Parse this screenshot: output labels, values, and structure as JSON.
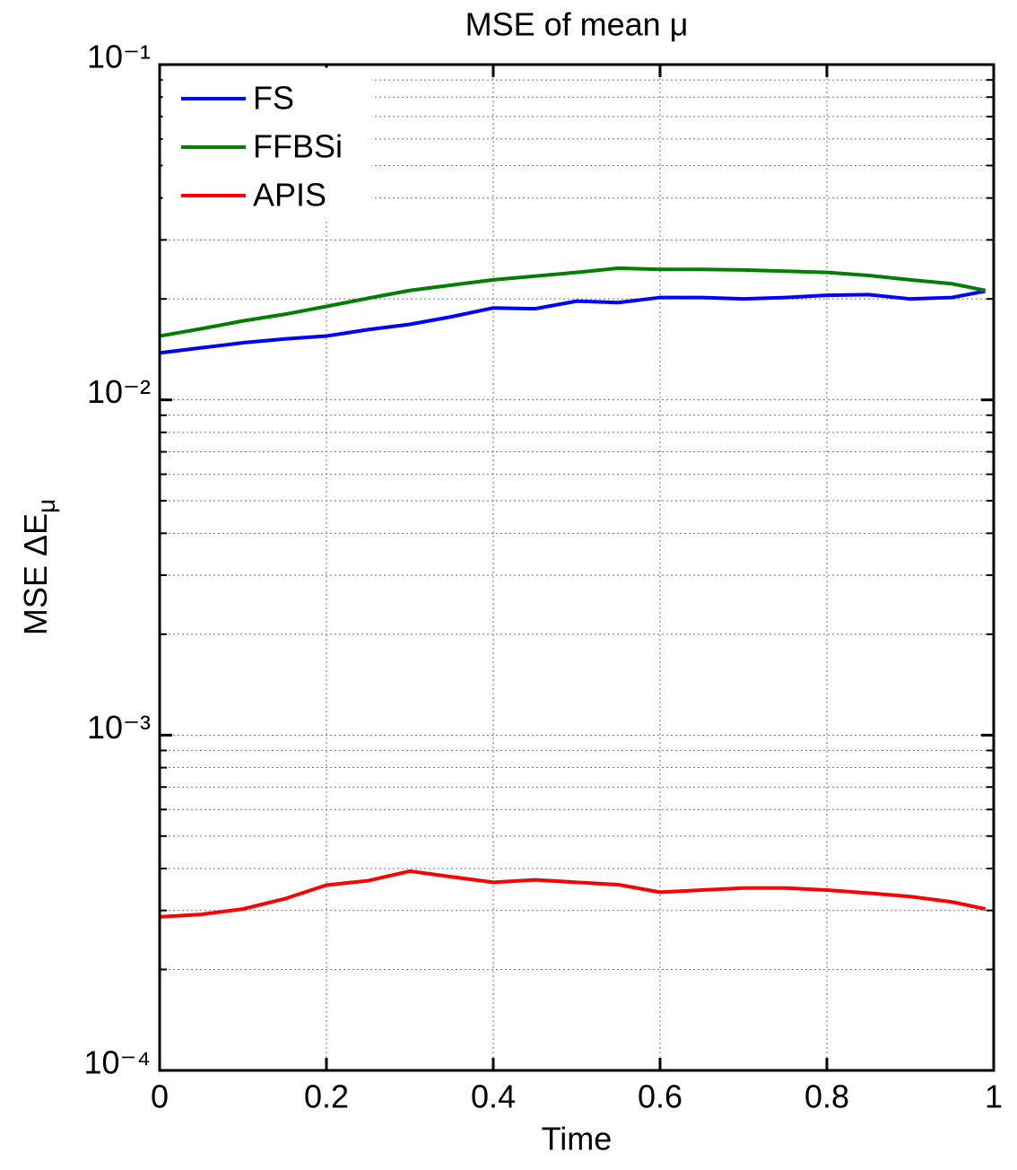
{
  "chart_data": {
    "type": "line",
    "title": "MSE of mean μ",
    "xlabel": "Time",
    "ylabel": {
      "text": "MSE ΔE",
      "subscript": "μ"
    },
    "x": [
      0,
      0.05,
      0.1,
      0.15,
      0.2,
      0.25,
      0.3,
      0.35,
      0.4,
      0.45,
      0.5,
      0.55,
      0.6,
      0.65,
      0.7,
      0.75,
      0.8,
      0.85,
      0.9,
      0.95,
      0.99
    ],
    "series": [
      {
        "name": "FS",
        "color": "#0000ff",
        "values": [
          0.0138,
          0.0143,
          0.0148,
          0.0152,
          0.0155,
          0.0162,
          0.0168,
          0.0177,
          0.0188,
          0.0187,
          0.0197,
          0.0195,
          0.0202,
          0.0202,
          0.02,
          0.0202,
          0.0205,
          0.0206,
          0.02,
          0.0202,
          0.0211
        ]
      },
      {
        "name": "FFBSi",
        "color": "#007f00",
        "values": [
          0.0155,
          0.0163,
          0.0172,
          0.018,
          0.019,
          0.0201,
          0.0212,
          0.022,
          0.0228,
          0.0234,
          0.024,
          0.0247,
          0.0245,
          0.0245,
          0.0244,
          0.0242,
          0.024,
          0.0235,
          0.0228,
          0.0222,
          0.0212
        ]
      },
      {
        "name": "APIS",
        "color": "#ff0000",
        "values": [
          0.000287,
          0.000292,
          0.000303,
          0.000325,
          0.000357,
          0.000368,
          0.000393,
          0.000378,
          0.000364,
          0.00037,
          0.000364,
          0.000358,
          0.00034,
          0.000345,
          0.00035,
          0.00035,
          0.000345,
          0.000338,
          0.00033,
          0.000318,
          0.000303
        ]
      }
    ],
    "xlim": [
      0,
      1
    ],
    "xticks": [
      0,
      0.2,
      0.4,
      0.6,
      0.8,
      1
    ],
    "ylim": [
      0.0001,
      0.1
    ],
    "yticks": [
      {
        "value": 0.0001,
        "label": "10⁻⁴"
      },
      {
        "value": 0.001,
        "label": "10⁻³"
      },
      {
        "value": 0.01,
        "label": "10⁻²"
      },
      {
        "value": 0.1,
        "label": "10⁻¹"
      }
    ],
    "yminorticks": [
      0.0002,
      0.0003,
      0.0004,
      0.0005,
      0.0006,
      0.0007,
      0.0008,
      0.0009,
      0.002,
      0.003,
      0.004,
      0.005,
      0.006,
      0.007,
      0.008,
      0.009,
      0.02,
      0.03,
      0.04,
      0.05,
      0.06,
      0.07,
      0.08,
      0.09
    ],
    "log_y": true,
    "grid": true,
    "legend": "top-left"
  }
}
